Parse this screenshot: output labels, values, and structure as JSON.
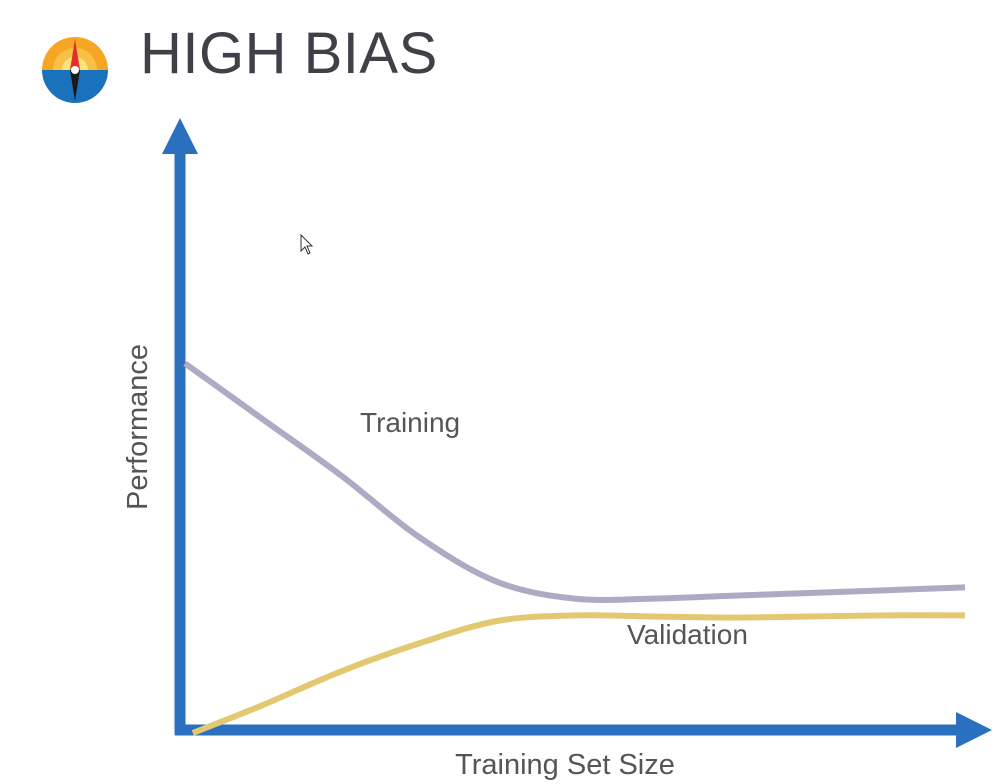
{
  "slide": {
    "title": "HIGH BIAS",
    "logo_icon": "compass-icon"
  },
  "chart_data": {
    "type": "line",
    "title": "HIGH BIAS",
    "xlabel": "Training Set Size",
    "ylabel": "Performance",
    "xlim": [
      0,
      100
    ],
    "ylim": [
      0,
      100
    ],
    "grid": false,
    "legend": "inline-labels",
    "series": [
      {
        "name": "Training",
        "color": "#aeaac4",
        "x": [
          0,
          10,
          20,
          30,
          40,
          50,
          60,
          70,
          80,
          90,
          100
        ],
        "y": [
          66,
          56,
          46,
          35,
          27,
          24,
          24,
          24.5,
          25,
          25.5,
          26
        ]
      },
      {
        "name": "Validation",
        "color": "#e2c870",
        "x": [
          1,
          10,
          20,
          30,
          40,
          50,
          60,
          70,
          80,
          90,
          100
        ],
        "y": [
          0,
          5,
          11,
          16,
          20,
          21,
          20.8,
          20.6,
          20.8,
          21,
          21
        ]
      }
    ],
    "axis_color": "#2b6fbf"
  }
}
